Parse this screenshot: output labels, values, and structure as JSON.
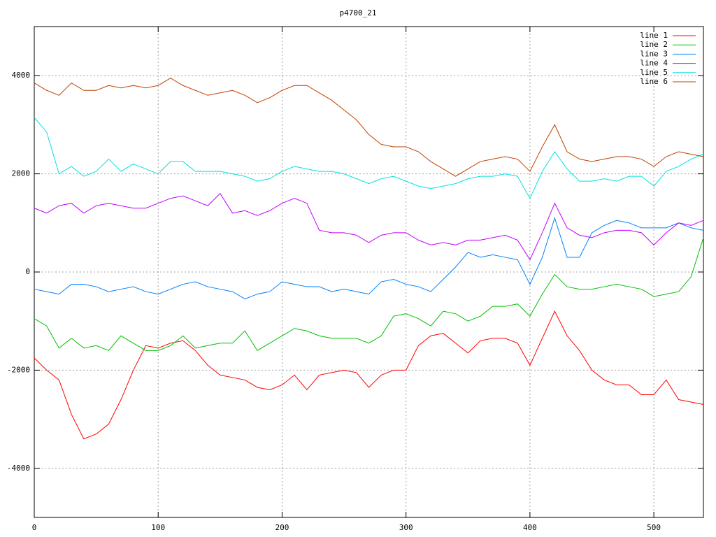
{
  "chart_data": {
    "type": "line",
    "title": "p4700_21",
    "x": [
      0,
      10,
      20,
      30,
      40,
      50,
      60,
      70,
      80,
      90,
      100,
      110,
      120,
      130,
      140,
      150,
      160,
      170,
      180,
      190,
      200,
      210,
      220,
      230,
      240,
      250,
      260,
      270,
      280,
      290,
      300,
      310,
      320,
      330,
      340,
      350,
      360,
      370,
      380,
      390,
      400,
      410,
      420,
      430,
      440,
      450,
      460,
      470,
      480,
      490,
      500,
      510,
      520,
      530,
      540
    ],
    "xlim": [
      0,
      540
    ],
    "xticks": [
      0,
      100,
      200,
      300,
      400,
      500
    ],
    "ylim": [
      -5000,
      5000
    ],
    "yticks": [
      -4000,
      -2000,
      0,
      2000,
      4000
    ],
    "grid": true,
    "legend": "top-right",
    "series": [
      {
        "name": "line 1",
        "color": "#ff0000",
        "values": [
          -1750,
          -2000,
          -2200,
          -2900,
          -3400,
          -3300,
          -3100,
          -2600,
          -2000,
          -1500,
          -1550,
          -1450,
          -1400,
          -1600,
          -1900,
          -2100,
          -2150,
          -2200,
          -2350,
          -2400,
          -2300,
          -2100,
          -2400,
          -2100,
          -2050,
          -2000,
          -2050,
          -2350,
          -2100,
          -2000,
          -2000,
          -1500,
          -1300,
          -1250,
          -1450,
          -1650,
          -1400,
          -1350,
          -1350,
          -1450,
          -1900,
          -1350,
          -800,
          -1300,
          -1600,
          -2000,
          -2200,
          -2300,
          -2300,
          -2500,
          -2500,
          -2200,
          -2600,
          -2650,
          -2700
        ]
      },
      {
        "name": "line 2",
        "color": "#00c000",
        "values": [
          -950,
          -1100,
          -1550,
          -1350,
          -1550,
          -1500,
          -1600,
          -1300,
          -1450,
          -1600,
          -1600,
          -1500,
          -1300,
          -1550,
          -1500,
          -1450,
          -1450,
          -1200,
          -1600,
          -1450,
          -1300,
          -1150,
          -1200,
          -1300,
          -1350,
          -1350,
          -1350,
          -1450,
          -1300,
          -900,
          -850,
          -950,
          -1100,
          -800,
          -850,
          -1000,
          -900,
          -700,
          -700,
          -650,
          -900,
          -450,
          -50,
          -300,
          -350,
          -350,
          -300,
          -250,
          -300,
          -350,
          -500,
          -450,
          -400,
          -100,
          700
        ]
      },
      {
        "name": "line 3",
        "color": "#0080ff",
        "values": [
          -350,
          -400,
          -450,
          -250,
          -250,
          -300,
          -400,
          -350,
          -300,
          -400,
          -450,
          -350,
          -250,
          -200,
          -300,
          -350,
          -400,
          -550,
          -450,
          -400,
          -200,
          -250,
          -300,
          -300,
          -400,
          -350,
          -400,
          -450,
          -200,
          -150,
          -250,
          -300,
          -400,
          -150,
          100,
          400,
          300,
          350,
          300,
          250,
          -250,
          300,
          1100,
          300,
          300,
          800,
          950,
          1050,
          1000,
          900,
          900,
          900,
          1000,
          900,
          850
        ]
      },
      {
        "name": "line 4",
        "color": "#c000ff",
        "values": [
          1300,
          1200,
          1350,
          1400,
          1200,
          1350,
          1400,
          1350,
          1300,
          1300,
          1400,
          1500,
          1550,
          1450,
          1350,
          1600,
          1200,
          1250,
          1150,
          1250,
          1400,
          1500,
          1400,
          850,
          800,
          800,
          750,
          600,
          750,
          800,
          800,
          650,
          550,
          600,
          550,
          650,
          650,
          700,
          750,
          650,
          250,
          800,
          1400,
          900,
          750,
          700,
          800,
          850,
          850,
          800,
          550,
          800,
          1000,
          950,
          1050
        ]
      },
      {
        "name": "line 5",
        "color": "#00e0e0",
        "values": [
          3150,
          2850,
          2000,
          2150,
          1950,
          2050,
          2300,
          2050,
          2200,
          2100,
          2000,
          2250,
          2250,
          2050,
          2050,
          2050,
          2000,
          1950,
          1850,
          1900,
          2050,
          2150,
          2100,
          2050,
          2050,
          2000,
          1900,
          1800,
          1900,
          1950,
          1850,
          1750,
          1700,
          1750,
          1800,
          1900,
          1950,
          1950,
          2000,
          1950,
          1500,
          2050,
          2450,
          2100,
          1850,
          1850,
          1900,
          1850,
          1950,
          1950,
          1750,
          2050,
          2150,
          2300,
          2400
        ]
      },
      {
        "name": "line 6",
        "color": "#c04000",
        "values": [
          3850,
          3700,
          3600,
          3850,
          3700,
          3700,
          3800,
          3750,
          3800,
          3750,
          3800,
          3950,
          3800,
          3700,
          3600,
          3650,
          3700,
          3600,
          3450,
          3550,
          3700,
          3800,
          3800,
          3650,
          3500,
          3300,
          3100,
          2800,
          2600,
          2550,
          2550,
          2450,
          2250,
          2100,
          1950,
          2100,
          2250,
          2300,
          2350,
          2300,
          2050,
          2550,
          3000,
          2450,
          2300,
          2250,
          2300,
          2350,
          2350,
          2300,
          2150,
          2350,
          2450,
          2400,
          2350
        ]
      }
    ]
  }
}
